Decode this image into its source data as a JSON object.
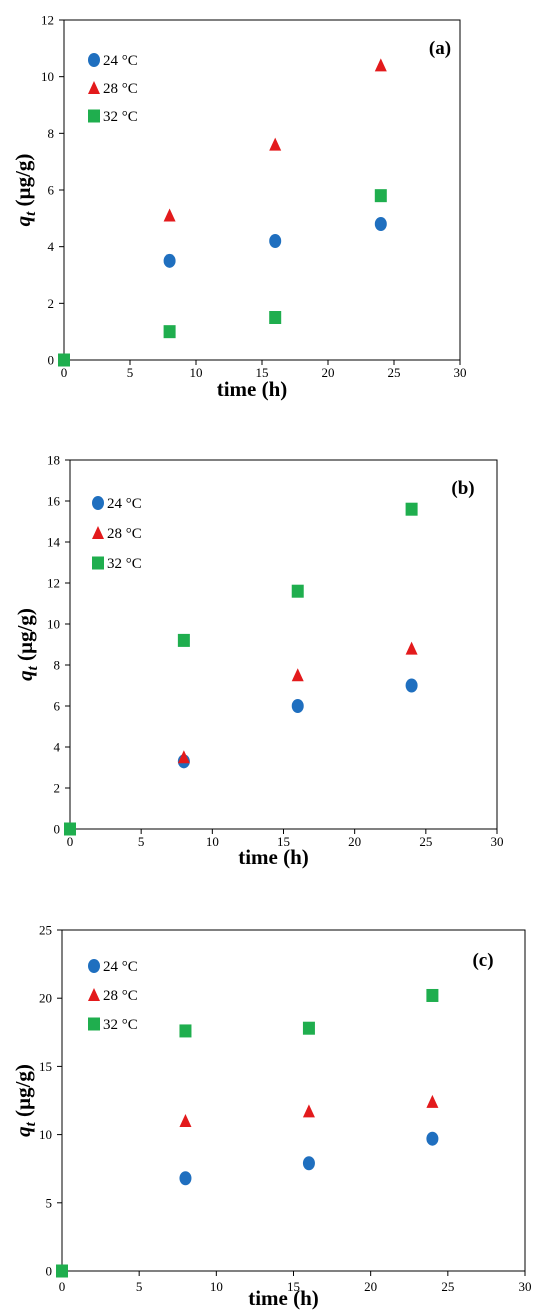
{
  "chart_data": [
    {
      "type": "scatter",
      "panel_label": "(a)",
      "xlabel": "time (h)",
      "ylabel": "q",
      "ylabel_subscript": "t",
      "ylabel_units": " (µg/g)",
      "xlim": [
        0,
        30
      ],
      "ylim": [
        0,
        12
      ],
      "xticks": [
        0,
        5,
        10,
        15,
        20,
        25,
        30
      ],
      "yticks": [
        0,
        2,
        4,
        6,
        8,
        10,
        12
      ],
      "grid": false,
      "legend_position": "top-left",
      "series": [
        {
          "name": "24 °C",
          "marker": "circle",
          "color": "#1f6fbf",
          "x": [
            8,
            16,
            24
          ],
          "y": [
            3.5,
            4.2,
            4.8
          ]
        },
        {
          "name": "28 °C",
          "marker": "triangle",
          "color": "#e31a1c",
          "x": [
            8,
            16,
            24
          ],
          "y": [
            5.1,
            7.6,
            10.4
          ]
        },
        {
          "name": "32 °C",
          "marker": "square",
          "color": "#1fae4e",
          "x": [
            0,
            8,
            16,
            24
          ],
          "y": [
            0,
            1.0,
            1.5,
            5.8
          ]
        }
      ]
    },
    {
      "type": "scatter",
      "panel_label": "(b)",
      "xlabel": "time (h)",
      "ylabel": "q",
      "ylabel_subscript": "t",
      "ylabel_units": " (µg/g)",
      "xlim": [
        0,
        30
      ],
      "ylim": [
        0,
        18
      ],
      "xticks": [
        0,
        5,
        10,
        15,
        20,
        25,
        30
      ],
      "yticks": [
        0,
        2,
        4,
        6,
        8,
        10,
        12,
        14,
        16,
        18
      ],
      "grid": false,
      "legend_position": "top-left",
      "series": [
        {
          "name": "24 °C",
          "marker": "circle",
          "color": "#1f6fbf",
          "x": [
            8,
            16,
            24
          ],
          "y": [
            3.3,
            6.0,
            7.0
          ]
        },
        {
          "name": "28 °C",
          "marker": "triangle",
          "color": "#e31a1c",
          "x": [
            8,
            16,
            24
          ],
          "y": [
            3.5,
            7.5,
            8.8
          ]
        },
        {
          "name": "32 °C",
          "marker": "square",
          "color": "#1fae4e",
          "x": [
            0,
            8,
            16,
            24
          ],
          "y": [
            0,
            9.2,
            11.6,
            15.6
          ]
        }
      ]
    },
    {
      "type": "scatter",
      "panel_label": "(c)",
      "xlabel": "time (h)",
      "ylabel": "q",
      "ylabel_subscript": "t",
      "ylabel_units": " (µg/g)",
      "xlim": [
        0,
        30
      ],
      "ylim": [
        0,
        25
      ],
      "xticks": [
        0,
        5,
        10,
        15,
        20,
        25,
        30
      ],
      "yticks": [
        0,
        5,
        10,
        15,
        20,
        25
      ],
      "grid": false,
      "legend_position": "top-left",
      "series": [
        {
          "name": "24 °C",
          "marker": "circle",
          "color": "#1f6fbf",
          "x": [
            8,
            16,
            24
          ],
          "y": [
            6.8,
            7.9,
            9.7
          ]
        },
        {
          "name": "28 °C",
          "marker": "triangle",
          "color": "#e31a1c",
          "x": [
            8,
            16,
            24
          ],
          "y": [
            11.0,
            11.7,
            12.4
          ]
        },
        {
          "name": "32 °C",
          "marker": "square",
          "color": "#1fae4e",
          "x": [
            0,
            8,
            16,
            24
          ],
          "y": [
            0,
            17.6,
            17.8,
            20.2
          ]
        }
      ]
    }
  ]
}
